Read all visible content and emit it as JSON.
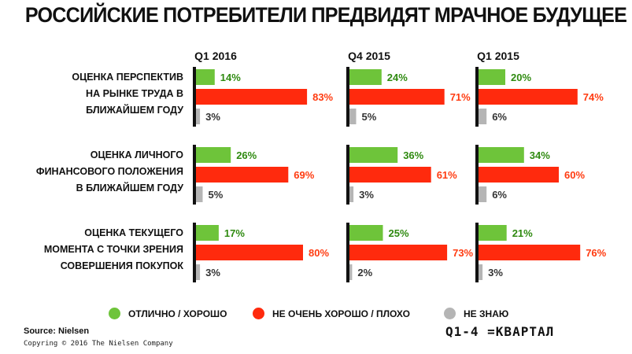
{
  "title": "РОССИЙСКИЕ ПОТРЕБИТЕЛИ ПРЕДВИДЯТ МРАЧНОЕ БУДУЩЕЕ",
  "colors": {
    "green": "#6ec43a",
    "red": "#ff2a0d",
    "gray": "#b5b5b5",
    "axis": "#111111",
    "green_text": "#2f8a10",
    "red_text": "#ff3b10",
    "gray_text": "#333333"
  },
  "chart_data": {
    "type": "bar",
    "orientation": "horizontal",
    "panels": [
      "Q1 2016",
      "Q4 2015",
      "Q1 2015"
    ],
    "categories": [
      [
        "ОЦЕНКА ПЕРСПЕКТИВ",
        "НА РЫНКЕ ТРУДА В",
        "БЛИЖАЙШЕМ ГОДУ"
      ],
      [
        "ОЦЕНКА ЛИЧНОГО",
        "ФИНАНСОВОГО ПОЛОЖЕНИЯ",
        "В БЛИЖАЙШЕМ ГОДУ"
      ],
      [
        "ОЦЕНКА ТЕКУЩЕГО",
        "МОМЕНТА С ТОЧКИ ЗРЕНИЯ",
        "СОВЕРШЕНИЯ ПОКУПОК"
      ]
    ],
    "series": [
      {
        "name": "ОТЛИЧНО / ХОРОШО",
        "color": "#6ec43a",
        "values": [
          [
            14,
            24,
            20
          ],
          [
            26,
            36,
            34
          ],
          [
            17,
            25,
            21
          ]
        ]
      },
      {
        "name": "НЕ ОЧЕНЬ ХОРОШО / ПЛОХО",
        "color": "#ff2a0d",
        "values": [
          [
            83,
            71,
            74
          ],
          [
            69,
            61,
            60
          ],
          [
            80,
            73,
            76
          ]
        ]
      },
      {
        "name": "НЕ ЗНАЮ",
        "color": "#b5b5b5",
        "values": [
          [
            3,
            5,
            6
          ],
          [
            5,
            3,
            6
          ],
          [
            3,
            2,
            3
          ]
        ]
      }
    ],
    "value_suffix": "%",
    "xlim": [
      0,
      100
    ]
  },
  "legend": [
    "ОТЛИЧНО / ХОРОШО",
    "НЕ ОЧЕНЬ ХОРОШО / ПЛОХО",
    "НЕ ЗНАЮ"
  ],
  "footer": {
    "source": "Source: Nielsen",
    "copyright": "Copyring © 2016 The Nielsen Company",
    "note": "Q1-4 =КВАРТАЛ"
  }
}
